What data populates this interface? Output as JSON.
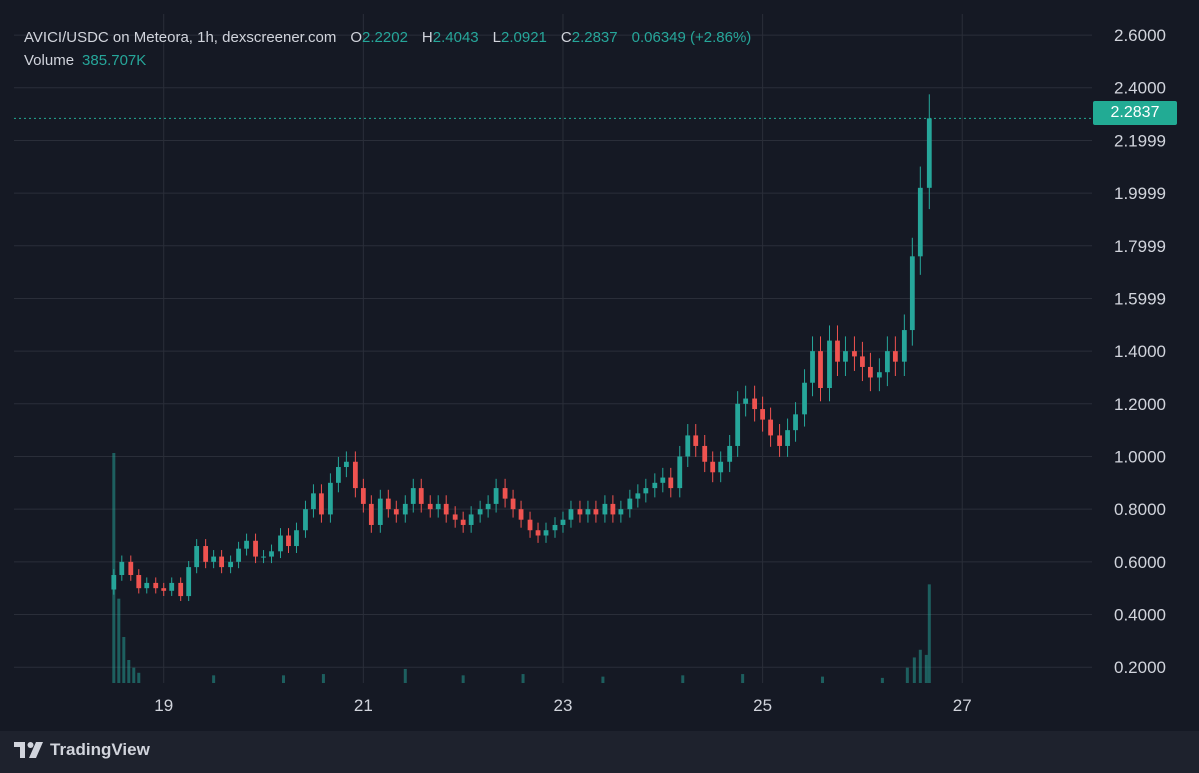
{
  "legend": {
    "title": "AVICI/USDC on Meteora, 1h, dexscreener.com",
    "open_label": "O",
    "open": "2.2202",
    "high_label": "H",
    "high": "2.4043",
    "low_label": "L",
    "low": "2.0921",
    "close_label": "C",
    "close": "2.2837",
    "change": "0.06349 (+2.86%)",
    "volume_label": "Volume",
    "volume": "385.707K"
  },
  "price_tag": "2.2837",
  "brand": {
    "name": "TradingView"
  },
  "colors": {
    "up": "#26a69a",
    "down": "#ef5350",
    "background": "#151924",
    "grid": "#2a2e39",
    "tag": "#22ab94"
  },
  "chart_data": {
    "type": "candlestick",
    "title": "AVICI/USDC on Meteora, 1h, dexscreener.com",
    "y_tick_labels": [
      "2.6000",
      "2.4000",
      "2.1999",
      "1.9999",
      "1.7999",
      "1.5999",
      "1.4000",
      "1.2000",
      "1.0000",
      "0.8000",
      "0.6000",
      "0.4000",
      "0.2000"
    ],
    "x_tick_labels": [
      "19",
      "21",
      "23",
      "25",
      "27"
    ],
    "x_tick_days": [
      19,
      21,
      23,
      25,
      27
    ],
    "x_range_days": [
      17.5,
      28.3
    ],
    "ylim": [
      0.14,
      2.68
    ],
    "last_price": 2.2837,
    "grid": true,
    "candle_interval": "1h",
    "candles_day_close": [
      [
        18.5,
        0.55
      ],
      [
        18.58,
        0.6
      ],
      [
        18.67,
        0.55
      ],
      [
        18.75,
        0.5
      ],
      [
        18.83,
        0.52
      ],
      [
        18.92,
        0.5
      ],
      [
        19.0,
        0.49
      ],
      [
        19.08,
        0.52
      ],
      [
        19.17,
        0.47
      ],
      [
        19.25,
        0.58
      ],
      [
        19.33,
        0.66
      ],
      [
        19.42,
        0.6
      ],
      [
        19.5,
        0.62
      ],
      [
        19.58,
        0.58
      ],
      [
        19.67,
        0.6
      ],
      [
        19.75,
        0.65
      ],
      [
        19.83,
        0.68
      ],
      [
        19.92,
        0.62
      ],
      [
        20.0,
        0.62
      ],
      [
        20.08,
        0.64
      ],
      [
        20.17,
        0.7
      ],
      [
        20.25,
        0.66
      ],
      [
        20.33,
        0.72
      ],
      [
        20.42,
        0.8
      ],
      [
        20.5,
        0.86
      ],
      [
        20.58,
        0.78
      ],
      [
        20.67,
        0.9
      ],
      [
        20.75,
        0.96
      ],
      [
        20.83,
        0.98
      ],
      [
        20.92,
        0.88
      ],
      [
        21.0,
        0.82
      ],
      [
        21.08,
        0.74
      ],
      [
        21.17,
        0.84
      ],
      [
        21.25,
        0.8
      ],
      [
        21.33,
        0.78
      ],
      [
        21.42,
        0.82
      ],
      [
        21.5,
        0.88
      ],
      [
        21.58,
        0.82
      ],
      [
        21.67,
        0.8
      ],
      [
        21.75,
        0.82
      ],
      [
        21.83,
        0.78
      ],
      [
        21.92,
        0.76
      ],
      [
        22.0,
        0.74
      ],
      [
        22.08,
        0.78
      ],
      [
        22.17,
        0.8
      ],
      [
        22.25,
        0.82
      ],
      [
        22.33,
        0.88
      ],
      [
        22.42,
        0.84
      ],
      [
        22.5,
        0.8
      ],
      [
        22.58,
        0.76
      ],
      [
        22.67,
        0.72
      ],
      [
        22.75,
        0.7
      ],
      [
        22.83,
        0.72
      ],
      [
        22.92,
        0.74
      ],
      [
        23.0,
        0.76
      ],
      [
        23.08,
        0.8
      ],
      [
        23.17,
        0.78
      ],
      [
        23.25,
        0.8
      ],
      [
        23.33,
        0.78
      ],
      [
        23.42,
        0.82
      ],
      [
        23.5,
        0.78
      ],
      [
        23.58,
        0.8
      ],
      [
        23.67,
        0.84
      ],
      [
        23.75,
        0.86
      ],
      [
        23.83,
        0.88
      ],
      [
        23.92,
        0.9
      ],
      [
        24.0,
        0.92
      ],
      [
        24.08,
        0.88
      ],
      [
        24.17,
        1.0
      ],
      [
        24.25,
        1.08
      ],
      [
        24.33,
        1.04
      ],
      [
        24.42,
        0.98
      ],
      [
        24.5,
        0.94
      ],
      [
        24.58,
        0.98
      ],
      [
        24.67,
        1.04
      ],
      [
        24.75,
        1.2
      ],
      [
        24.83,
        1.22
      ],
      [
        24.92,
        1.18
      ],
      [
        25.0,
        1.14
      ],
      [
        25.08,
        1.08
      ],
      [
        25.17,
        1.04
      ],
      [
        25.25,
        1.1
      ],
      [
        25.33,
        1.16
      ],
      [
        25.42,
        1.28
      ],
      [
        25.5,
        1.4
      ],
      [
        25.58,
        1.26
      ],
      [
        25.67,
        1.44
      ],
      [
        25.75,
        1.36
      ],
      [
        25.83,
        1.4
      ],
      [
        25.92,
        1.38
      ],
      [
        26.0,
        1.34
      ],
      [
        26.08,
        1.3
      ],
      [
        26.17,
        1.32
      ],
      [
        26.25,
        1.4
      ],
      [
        26.33,
        1.36
      ],
      [
        26.42,
        1.48
      ],
      [
        26.5,
        1.76
      ],
      [
        26.58,
        2.02
      ],
      [
        26.67,
        2.2837
      ]
    ],
    "volume_day_value_k": [
      [
        18.5,
        900
      ],
      [
        18.55,
        330
      ],
      [
        18.6,
        180
      ],
      [
        18.65,
        90
      ],
      [
        18.7,
        60
      ],
      [
        18.75,
        40
      ],
      [
        19.5,
        30
      ],
      [
        20.2,
        30
      ],
      [
        20.6,
        35
      ],
      [
        21.42,
        55
      ],
      [
        22.0,
        30
      ],
      [
        22.6,
        35
      ],
      [
        23.4,
        25
      ],
      [
        24.2,
        30
      ],
      [
        24.8,
        35
      ],
      [
        25.6,
        25
      ],
      [
        26.2,
        20
      ],
      [
        26.45,
        60
      ],
      [
        26.52,
        100
      ],
      [
        26.58,
        130
      ],
      [
        26.64,
        110
      ],
      [
        26.67,
        386
      ]
    ]
  }
}
